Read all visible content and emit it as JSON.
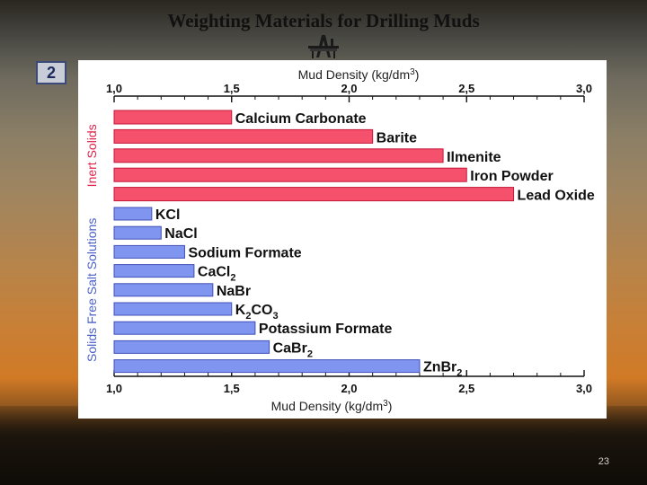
{
  "slide": {
    "title": "Weighting Materials for Drilling Muds",
    "section_number": "2",
    "page_number": "23"
  },
  "icons": {
    "rig": "oil-rig-icon"
  },
  "colors": {
    "inert_fill": "#f5506c",
    "inert_stroke": "#c4173a",
    "salt_fill": "#7f95ef",
    "salt_stroke": "#4050b8",
    "inert_group_label": "#e0234a",
    "salt_group_label": "#4a60c8"
  },
  "chart_data": {
    "type": "bar",
    "orientation": "horizontal",
    "xlabel_top": "Mud Density (kg/dm3)",
    "xlabel_bottom": "Mud Density (kg/dm3)",
    "xlim": [
      1.0,
      3.0
    ],
    "ticks": [
      {
        "value": 1.0,
        "label": "1,0"
      },
      {
        "value": 1.5,
        "label": "1,5"
      },
      {
        "value": 2.0,
        "label": "2,0"
      },
      {
        "value": 2.5,
        "label": "2,5"
      },
      {
        "value": 3.0,
        "label": "3,0"
      }
    ],
    "grid": false,
    "groups": [
      {
        "name": "Inert Solids",
        "items": [
          {
            "label": "Calcium Carbonate",
            "value": 1.5
          },
          {
            "label": "Barite",
            "value": 2.1
          },
          {
            "label": "Ilmenite",
            "value": 2.4
          },
          {
            "label": "Iron Powder",
            "value": 2.5
          },
          {
            "label": "Lead Oxide",
            "value": 2.7
          }
        ]
      },
      {
        "name": "Solids Free Salt Solutions",
        "items": [
          {
            "label": "KCl",
            "value": 1.16
          },
          {
            "label": "NaCl",
            "value": 1.2
          },
          {
            "label": "Sodium Formate",
            "value": 1.3
          },
          {
            "label": "CaCl2",
            "value": 1.34
          },
          {
            "label": "NaBr",
            "value": 1.42
          },
          {
            "label": "K2CO3",
            "value": 1.5
          },
          {
            "label": "Potassium Formate",
            "value": 1.6
          },
          {
            "label": "CaBr2",
            "value": 1.66
          },
          {
            "label": "ZnBr2",
            "value": 2.3
          }
        ]
      }
    ]
  }
}
